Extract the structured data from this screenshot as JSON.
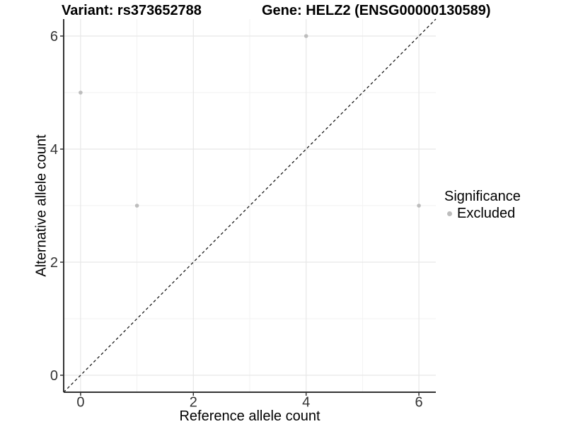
{
  "titles": {
    "variant": "Variant: rs373652788",
    "gene": "Gene: HELZ2 (ENSG00000130589)"
  },
  "axes": {
    "x_label": "Reference allele count",
    "y_label": "Alternative allele count"
  },
  "legend": {
    "title": "Significance",
    "items": [
      {
        "label": "Excluded",
        "color": "#bdbdbd",
        "marker": "circle"
      }
    ]
  },
  "chart_data": {
    "type": "scatter",
    "title": "Variant: rs373652788  |  Gene: HELZ2 (ENSG00000130589)",
    "xlabel": "Reference allele count",
    "ylabel": "Alternative allele count",
    "xlim": [
      -0.3,
      6.3
    ],
    "ylim": [
      -0.3,
      6.3
    ],
    "x_ticks": {
      "values": [
        0,
        2,
        4,
        6
      ],
      "labels": [
        "0",
        "2",
        "4",
        "6"
      ]
    },
    "y_ticks": {
      "values": [
        0,
        2,
        4,
        6
      ],
      "labels": [
        "0",
        "2",
        "4",
        "6"
      ]
    },
    "minor_ticks": [
      1,
      3,
      5
    ],
    "grid": true,
    "legend_position": "right",
    "series": [
      {
        "name": "Excluded",
        "color": "#bdbdbd",
        "points": [
          {
            "x": 0,
            "y": 5
          },
          {
            "x": 1,
            "y": 3
          },
          {
            "x": 4,
            "y": 6
          },
          {
            "x": 6,
            "y": 3
          }
        ]
      }
    ],
    "reference_line": {
      "type": "identity",
      "slope": 1,
      "intercept": 0,
      "style": "dashed",
      "color": "#1a1a1a"
    }
  },
  "style": {
    "background": "#ffffff",
    "grid_major": "#e7e7e7",
    "grid_minor": "#f2f2f2",
    "axis_line": "#333333",
    "tick_label_color": "#333333",
    "text_color": "#000000",
    "point_color": "#bdbdbd",
    "point_radius": 2.8
  }
}
